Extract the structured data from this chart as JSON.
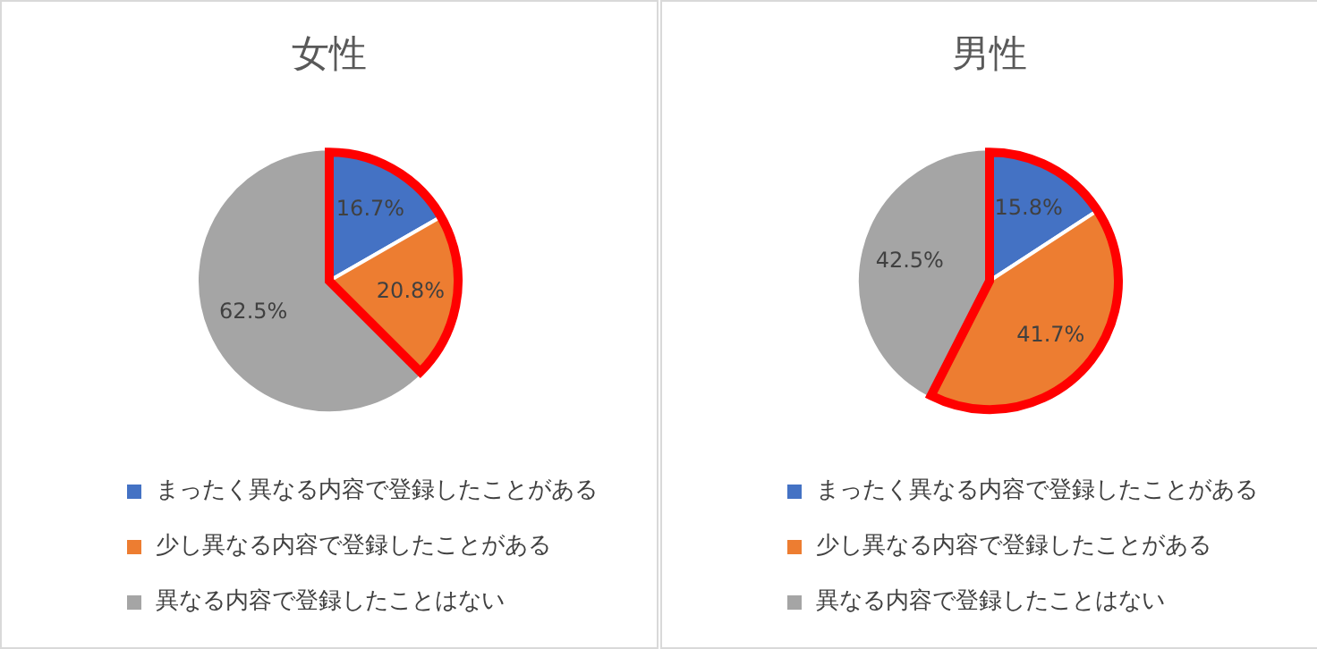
{
  "chart_data": [
    {
      "type": "pie",
      "title": "女性",
      "categories": [
        "まったく異なる内容で登録したことがある",
        "少し異なる内容で登録したことがある",
        "異なる内容で登録したことはない"
      ],
      "values": [
        16.7,
        20.8,
        62.5
      ],
      "value_labels": [
        "16.7%",
        "20.8%",
        "62.5%"
      ],
      "colors": [
        "#4472c4",
        "#ed7d31",
        "#a5a5a5"
      ],
      "legend": "bottom"
    },
    {
      "type": "pie",
      "title": "男性",
      "categories": [
        "まったく異なる内容で登録したことがある",
        "少し異なる内容で登録したことがある",
        "異なる内容で登録したことはない"
      ],
      "values": [
        15.8,
        41.7,
        42.5
      ],
      "value_labels": [
        "15.8%",
        "41.7%",
        "42.5%"
      ],
      "colors": [
        "#4472c4",
        "#ed7d31",
        "#a5a5a5"
      ],
      "legend": "bottom"
    }
  ]
}
